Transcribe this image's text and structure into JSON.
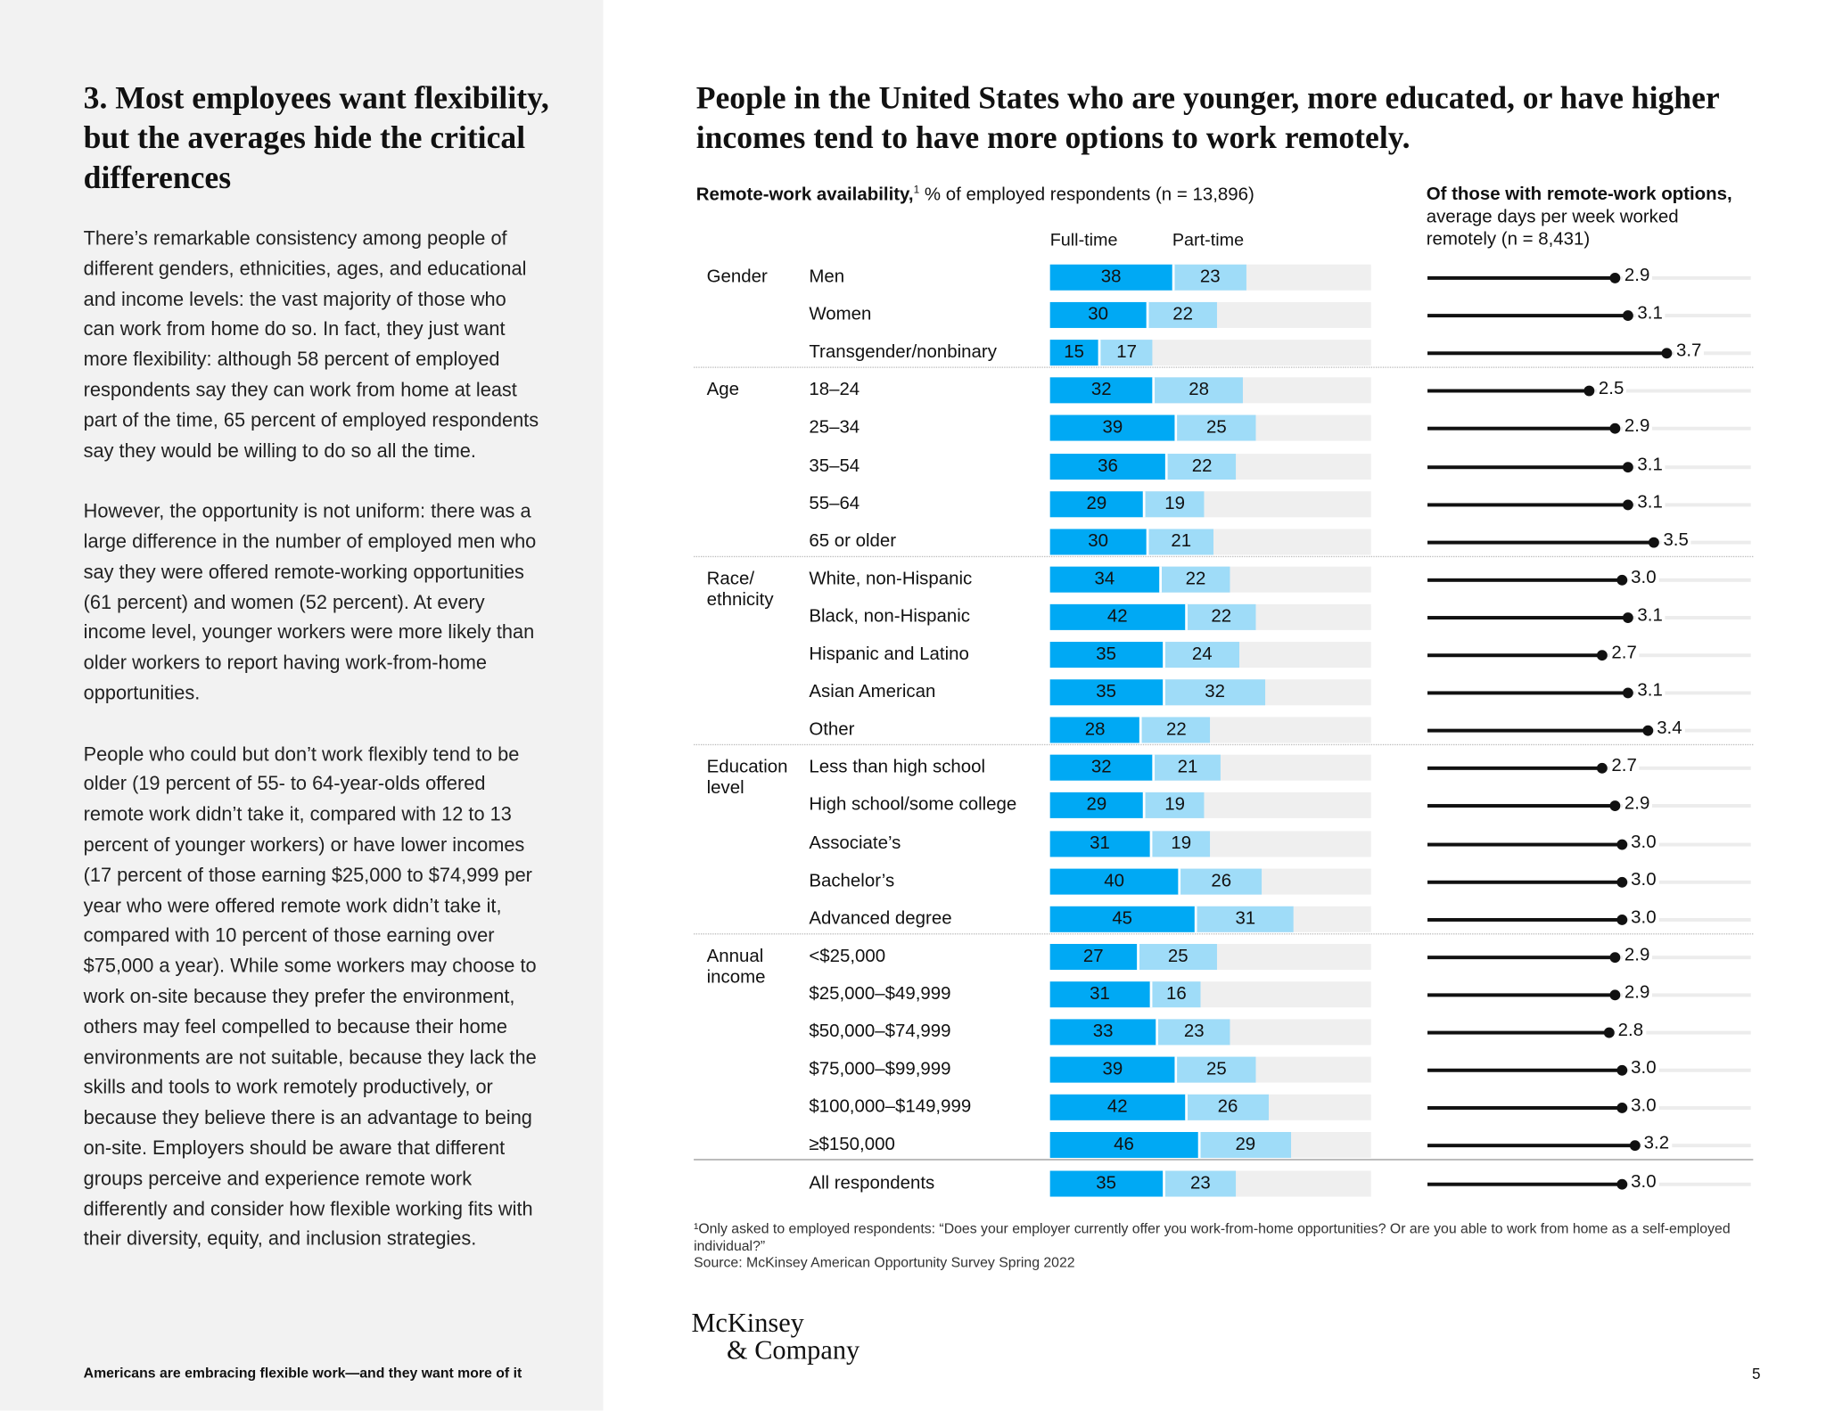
{
  "left": {
    "heading": "3. Most employees want flexibility, but the averages hide the critical differences",
    "paragraphs": [
      "There’s remarkable consistency among people of different genders, ethnicities, ages, and educational and income levels: the vast majority of those who can work from home do so. In fact, they just want more flexibility: although 58 percent of employed respondents say they can work from home at least part of the time, 65 percent of employed respondents say they would be willing to do so all the time.",
      "However, the opportunity is not uniform: there was a large difference in the number of employed men who say they were offered remote-working opportunities (61 percent) and women (52 percent). At every income level, younger workers were more likely than older workers to report having work-from-home opportunities.",
      "People who could but don’t work flexibly tend to be older (19 percent of 55- to 64-year-olds offered remote work didn’t take it, compared with 12 to 13 percent of younger workers) or have lower incomes (17 percent of those earning $25,000 to $74,999 per year who were offered remote work didn’t take it, compared with 10 percent of those earning over $75,000 a year). While some workers may choose to work on-site because they prefer the environment, others may feel compelled to because their home environments are not suitable, because they lack the skills and tools to work remotely productively, or because they believe there is an advantage to being on-site. Employers should be aware that different groups perceive and experience remote work differently and consider how flexible working fits with their diversity, equity, and inclusion strategies."
    ],
    "footer": "Americans are embracing flexible work—and they want more of it"
  },
  "title": "People in the United States who are younger, more educated, or have higher incomes tend to have more options to work remotely.",
  "subtitle_bold": "Remote-work availability,",
  "subtitle_sup": "1",
  "subtitle_rest": " % of employed respondents (n = 13,896)",
  "right_header_bold": "Of those with remote-work options,",
  "right_header_rest": " average days per week worked remotely (n = 8,431)",
  "footnote": "¹Only asked to employed respondents: “Does your employer currently offer you work-from-home opportunities? Or are you able to work from home as a self-employed individual?”",
  "source": "Source: McKinsey American Opportunity Survey Spring 2022",
  "logo": [
    "McKinsey",
    "& Company"
  ],
  "page_number": "5",
  "colors": {
    "full_time": "#00a9f4",
    "part_time": "#9fdcf8",
    "track": "#efefef",
    "dot": "#111111"
  },
  "chart_data": {
    "type": "bar",
    "stacked": true,
    "series_names": [
      "Full-time",
      "Part-time"
    ],
    "xlim": [
      0,
      100
    ],
    "lollipop_xlim": [
      0,
      5
    ],
    "groups": [
      {
        "name": "Gender",
        "rows": [
          {
            "label": "Men",
            "full": 38,
            "part": 23,
            "days": "2.9"
          },
          {
            "label": "Women",
            "full": 30,
            "part": 22,
            "days": "3.1"
          },
          {
            "label": "Transgender/nonbinary",
            "full": 15,
            "part": 17,
            "days": "3.7"
          }
        ]
      },
      {
        "name": "Age",
        "rows": [
          {
            "label": "18–24",
            "full": 32,
            "part": 28,
            "days": "2.5"
          },
          {
            "label": "25–34",
            "full": 39,
            "part": 25,
            "days": "2.9"
          },
          {
            "label": "35–54",
            "full": 36,
            "part": 22,
            "days": "3.1"
          },
          {
            "label": "55–64",
            "full": 29,
            "part": 19,
            "days": "3.1"
          },
          {
            "label": "65 or older",
            "full": 30,
            "part": 21,
            "days": "3.5"
          }
        ]
      },
      {
        "name": "Race/ ethnicity",
        "rows": [
          {
            "label": "White, non-Hispanic",
            "full": 34,
            "part": 22,
            "days": "3.0"
          },
          {
            "label": "Black, non-Hispanic",
            "full": 42,
            "part": 22,
            "days": "3.1"
          },
          {
            "label": "Hispanic and Latino",
            "full": 35,
            "part": 24,
            "days": "2.7"
          },
          {
            "label": "Asian American",
            "full": 35,
            "part": 32,
            "days": "3.1"
          },
          {
            "label": "Other",
            "full": 28,
            "part": 22,
            "days": "3.4"
          }
        ]
      },
      {
        "name": "Education level",
        "rows": [
          {
            "label": "Less than high school",
            "full": 32,
            "part": 21,
            "days": "2.7"
          },
          {
            "label": "High school/some college",
            "full": 29,
            "part": 19,
            "days": "2.9"
          },
          {
            "label": "Associate’s",
            "full": 31,
            "part": 19,
            "days": "3.0"
          },
          {
            "label": "Bachelor’s",
            "full": 40,
            "part": 26,
            "days": "3.0"
          },
          {
            "label": "Advanced degree",
            "full": 45,
            "part": 31,
            "days": "3.0"
          }
        ]
      },
      {
        "name": "Annual income",
        "rows": [
          {
            "label": "<$25,000",
            "full": 27,
            "part": 25,
            "days": "2.9"
          },
          {
            "label": "$25,000–$49,999",
            "full": 31,
            "part": 16,
            "days": "2.9"
          },
          {
            "label": "$50,000–$74,999",
            "full": 33,
            "part": 23,
            "days": "2.8"
          },
          {
            "label": "$75,000–$99,999",
            "full": 39,
            "part": 25,
            "days": "3.0"
          },
          {
            "label": "$100,000–$149,999",
            "full": 42,
            "part": 26,
            "days": "3.0"
          },
          {
            "label": "≥$150,000",
            "full": 46,
            "part": 29,
            "days": "3.2"
          }
        ]
      },
      {
        "name": "",
        "rows": [
          {
            "label": "All respondents",
            "full": 35,
            "part": 23,
            "days": "3.0"
          }
        ]
      }
    ]
  }
}
